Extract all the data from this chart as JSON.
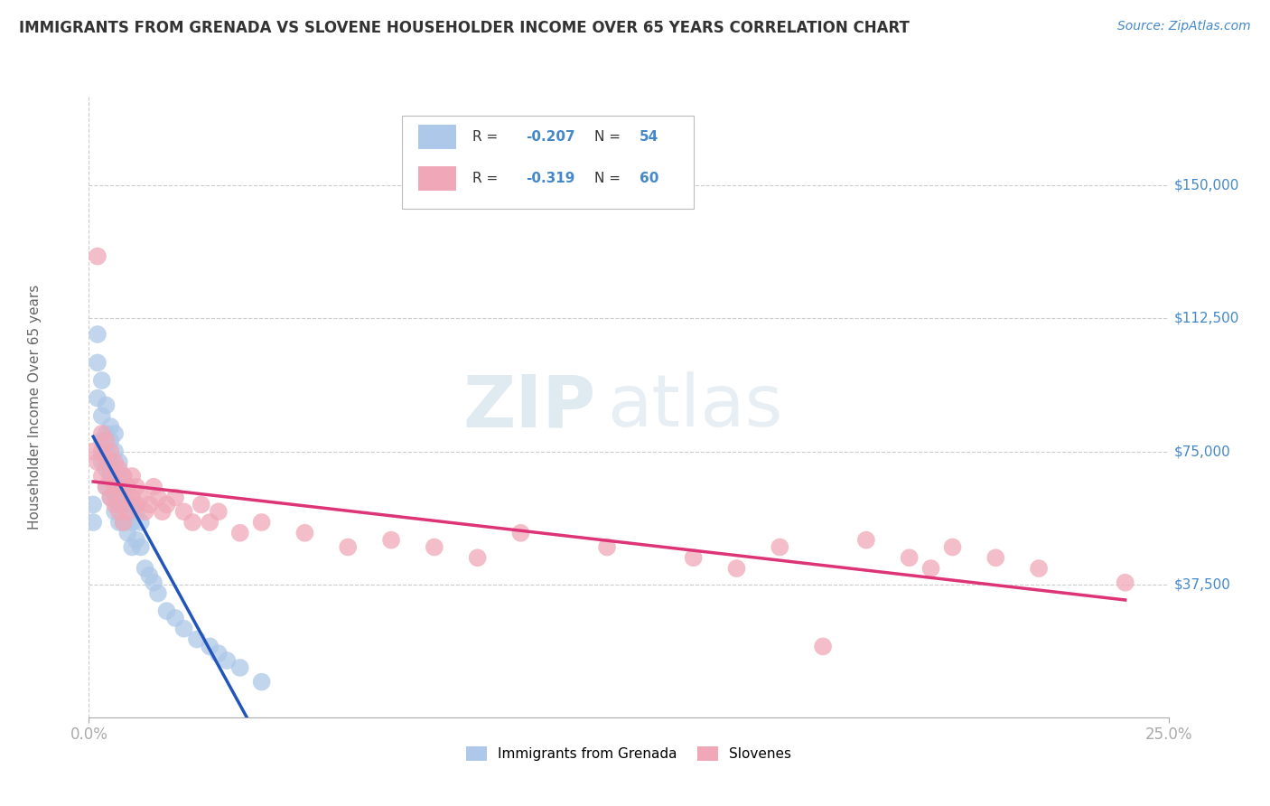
{
  "title": "IMMIGRANTS FROM GRENADA VS SLOVENE HOUSEHOLDER INCOME OVER 65 YEARS CORRELATION CHART",
  "source": "Source: ZipAtlas.com",
  "ylabel": "Householder Income Over 65 years",
  "xlim": [
    0.0,
    0.25
  ],
  "ylim": [
    0,
    175000
  ],
  "yticks": [
    37500,
    75000,
    112500,
    150000
  ],
  "ytick_labels": [
    "$37,500",
    "$75,000",
    "$112,500",
    "$150,000"
  ],
  "xticks": [
    0.0,
    0.25
  ],
  "xtick_labels": [
    "0.0%",
    "25.0%"
  ],
  "legend_label1": "Immigrants from Grenada",
  "legend_label2": "Slovenes",
  "color_blue": "#adc8e8",
  "color_pink": "#f0a8b8",
  "line_color_blue": "#2255bb",
  "line_color_pink": "#dd3377",
  "line_color_blue_dash": "#99bbdd",
  "watermark_zip": "ZIP",
  "watermark_atlas": "atlas",
  "background_color": "#ffffff",
  "grid_color": "#cccccc",
  "title_color": "#333333",
  "axis_label_color": "#4488cc",
  "grenada_x": [
    0.001,
    0.001,
    0.002,
    0.002,
    0.002,
    0.003,
    0.003,
    0.003,
    0.003,
    0.004,
    0.004,
    0.004,
    0.004,
    0.004,
    0.005,
    0.005,
    0.005,
    0.005,
    0.005,
    0.006,
    0.006,
    0.006,
    0.006,
    0.006,
    0.007,
    0.007,
    0.007,
    0.007,
    0.008,
    0.008,
    0.008,
    0.009,
    0.009,
    0.009,
    0.01,
    0.01,
    0.01,
    0.011,
    0.011,
    0.012,
    0.012,
    0.013,
    0.014,
    0.015,
    0.016,
    0.018,
    0.02,
    0.022,
    0.025,
    0.028,
    0.03,
    0.032,
    0.035,
    0.04
  ],
  "grenada_y": [
    60000,
    55000,
    108000,
    100000,
    90000,
    95000,
    85000,
    78000,
    72000,
    88000,
    80000,
    75000,
    70000,
    65000,
    82000,
    78000,
    72000,
    68000,
    62000,
    80000,
    75000,
    68000,
    63000,
    58000,
    72000,
    65000,
    60000,
    55000,
    68000,
    62000,
    55000,
    65000,
    60000,
    52000,
    60000,
    55000,
    48000,
    58000,
    50000,
    55000,
    48000,
    42000,
    40000,
    38000,
    35000,
    30000,
    28000,
    25000,
    22000,
    20000,
    18000,
    16000,
    14000,
    10000
  ],
  "slovene_x": [
    0.001,
    0.002,
    0.002,
    0.003,
    0.003,
    0.003,
    0.004,
    0.004,
    0.004,
    0.005,
    0.005,
    0.005,
    0.006,
    0.006,
    0.006,
    0.007,
    0.007,
    0.007,
    0.008,
    0.008,
    0.008,
    0.009,
    0.009,
    0.01,
    0.01,
    0.011,
    0.011,
    0.012,
    0.013,
    0.014,
    0.015,
    0.016,
    0.017,
    0.018,
    0.02,
    0.022,
    0.024,
    0.026,
    0.028,
    0.03,
    0.035,
    0.04,
    0.05,
    0.06,
    0.07,
    0.08,
    0.09,
    0.1,
    0.12,
    0.14,
    0.15,
    0.16,
    0.17,
    0.18,
    0.19,
    0.195,
    0.2,
    0.21,
    0.22,
    0.24
  ],
  "slovene_y": [
    75000,
    130000,
    72000,
    80000,
    75000,
    68000,
    78000,
    72000,
    65000,
    75000,
    68000,
    62000,
    72000,
    65000,
    60000,
    70000,
    65000,
    58000,
    68000,
    62000,
    55000,
    65000,
    58000,
    68000,
    62000,
    65000,
    60000,
    62000,
    58000,
    60000,
    65000,
    62000,
    58000,
    60000,
    62000,
    58000,
    55000,
    60000,
    55000,
    58000,
    52000,
    55000,
    52000,
    48000,
    50000,
    48000,
    45000,
    52000,
    48000,
    45000,
    42000,
    48000,
    20000,
    50000,
    45000,
    42000,
    48000,
    45000,
    42000,
    38000
  ]
}
